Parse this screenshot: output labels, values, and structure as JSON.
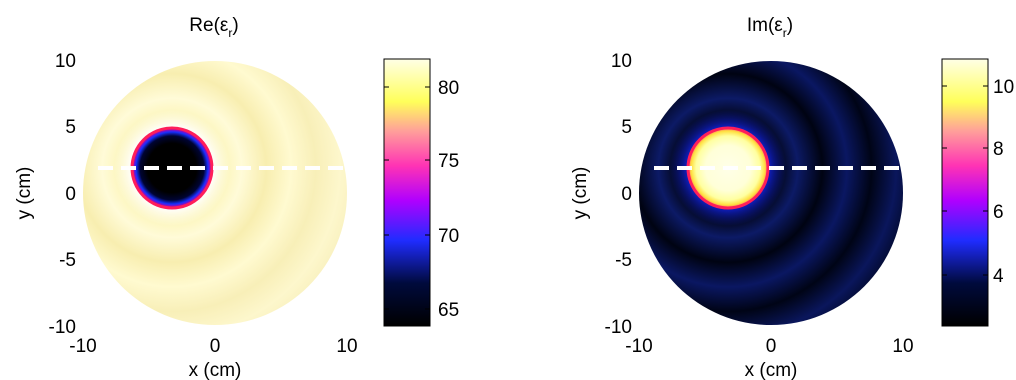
{
  "chart_data": [
    {
      "type": "heatmap",
      "title": "Re(εr)",
      "title_main": "Re(ε",
      "title_sub": "r",
      "title_close": ")",
      "xlabel": "x (cm)",
      "ylabel": "y (cm)",
      "xlim": [
        -10,
        10
      ],
      "ylim": [
        -10,
        10
      ],
      "x_ticks": [
        -10,
        0,
        10
      ],
      "y_ticks": [
        10,
        5,
        0,
        -5,
        -10
      ],
      "colorbar": {
        "range": [
          63.5,
          82
        ],
        "ticks": [
          65,
          70,
          75,
          80
        ],
        "colormap": "hot-pink-blue (black → blue → magenta → pink → yellow → white)"
      },
      "domain_circle": {
        "center": [
          0,
          0
        ],
        "radius": 10,
        "value": 81
      },
      "inclusion": {
        "center": [
          -3,
          2
        ],
        "radius": 3,
        "value": 63.5,
        "boundary_value": 75
      },
      "line_profile": {
        "y": 2,
        "x_range": [
          -8.7,
          10
        ],
        "style": "white dashed"
      },
      "background_pattern": "concentric ripple rings centered near the inclusion, values ~79-82"
    },
    {
      "type": "heatmap",
      "title": "Im(εr)",
      "title_main": "Im(ε",
      "title_sub": "r",
      "title_close": ")",
      "xlabel": "x (cm)",
      "ylabel": "y (cm)",
      "xlim": [
        -10,
        10
      ],
      "ylim": [
        -10,
        10
      ],
      "x_ticks": [
        -10,
        0,
        10
      ],
      "y_ticks": [
        10,
        5,
        0,
        -5,
        -10
      ],
      "colorbar": {
        "range": [
          2.3,
          10.8
        ],
        "ticks": [
          4,
          6,
          8,
          10
        ],
        "colormap": "hot-pink-blue (black → blue → magenta → pink → yellow → white)"
      },
      "domain_circle": {
        "center": [
          0,
          0
        ],
        "radius": 10,
        "value": 2.5
      },
      "inclusion": {
        "center": [
          -3,
          2
        ],
        "radius": 3,
        "value": 10.5,
        "boundary_value": 6.5
      },
      "line_profile": {
        "y": 2,
        "x_range": [
          -8.7,
          10
        ],
        "style": "white dashed"
      },
      "background_pattern": "concentric ripple rings centered near the inclusion, values ~2.3-3.5"
    }
  ]
}
